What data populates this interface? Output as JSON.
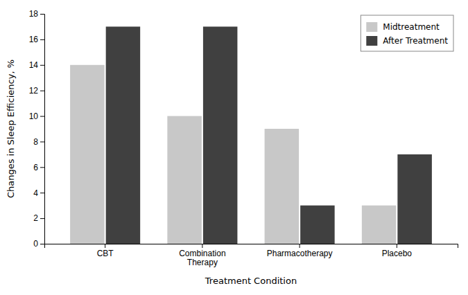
{
  "chart_data": {
    "type": "bar",
    "xlabel": "Treatment Condition",
    "ylabel": "Changes in Sleep Efficiency, %",
    "categories": [
      "CBT",
      "Combination\nTherapy",
      "Pharmacotherapy",
      "Placebo"
    ],
    "series": [
      {
        "name": "Midtreatment",
        "color": "#c8c8c8",
        "values": [
          14,
          10,
          9,
          3
        ]
      },
      {
        "name": "After Treatment",
        "color": "#404040",
        "values": [
          17,
          17,
          3,
          7
        ]
      }
    ],
    "ylim": [
      0,
      18
    ],
    "yticks": [
      0,
      2,
      4,
      6,
      8,
      10,
      12,
      14,
      16,
      18
    ],
    "grid": false,
    "legend": "upper right"
  }
}
